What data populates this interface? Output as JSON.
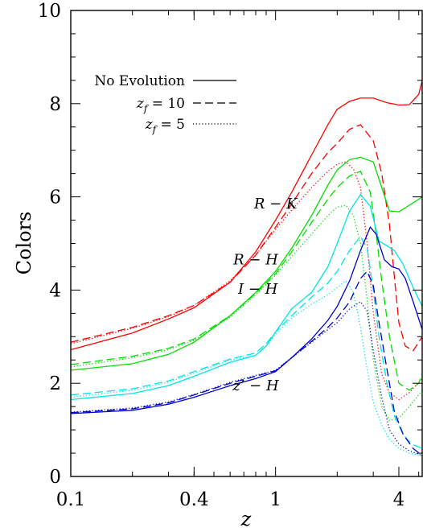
{
  "chart_data": {
    "type": "line",
    "xlabel": "z",
    "ylabel": "Colors",
    "xscale": "log",
    "xlim": [
      0.1,
      5.2
    ],
    "ylim": [
      0,
      10
    ],
    "x_ticks": [
      {
        "value": 0.1,
        "label": "0.1"
      },
      {
        "value": 0.4,
        "label": "0.4"
      },
      {
        "value": 1,
        "label": "1"
      },
      {
        "value": 4,
        "label": "4"
      }
    ],
    "y_ticks": [
      {
        "value": 0,
        "label": "0"
      },
      {
        "value": 2,
        "label": "2"
      },
      {
        "value": 4,
        "label": "4"
      },
      {
        "value": 6,
        "label": "6"
      },
      {
        "value": 8,
        "label": "8"
      },
      {
        "value": 10,
        "label": "10"
      }
    ],
    "legend": {
      "placement": "top-left",
      "entries": [
        {
          "label": "No Evolution",
          "style": "solid"
        },
        {
          "sym": "z",
          "sub": "f",
          "eq": "= 10",
          "style": "dashed"
        },
        {
          "sym": "z",
          "sub": "f",
          "eq": "=  5",
          "style": "dotted"
        }
      ]
    },
    "annotations": [
      {
        "text": "R  − K",
        "x": 1.0,
        "y": 5.75
      },
      {
        "text": "R  − H",
        "x": 0.8,
        "y": 4.55
      },
      {
        "text": "I  − H",
        "x": 0.82,
        "y": 3.92
      },
      {
        "text": "z’ − H",
        "x": 0.8,
        "y": 1.85
      }
    ],
    "series": [
      {
        "color": "#ff0000",
        "style": "solid",
        "x": [
          0.1,
          0.2,
          0.3,
          0.4,
          0.6,
          0.8,
          1.0,
          1.2,
          1.5,
          1.8,
          2.0,
          2.3,
          2.6,
          3.0,
          3.5,
          4.0,
          4.5,
          5.0,
          5.2
        ],
        "y": [
          2.72,
          3.08,
          3.38,
          3.62,
          4.17,
          4.82,
          5.5,
          6.1,
          6.9,
          7.55,
          7.88,
          8.05,
          8.12,
          8.12,
          8.02,
          7.97,
          7.98,
          8.2,
          8.5
        ]
      },
      {
        "color": "#ff0000",
        "style": "dashed",
        "x": [
          0.1,
          0.2,
          0.3,
          0.4,
          0.6,
          0.8,
          1.0,
          1.2,
          1.5,
          1.8,
          2.0,
          2.3,
          2.6,
          3.0,
          3.3,
          3.6,
          3.8,
          4.0,
          4.3,
          4.7,
          5.2
        ],
        "y": [
          2.88,
          3.2,
          3.45,
          3.67,
          4.17,
          4.75,
          5.35,
          5.85,
          6.5,
          6.95,
          7.15,
          7.45,
          7.55,
          7.2,
          6.5,
          5.4,
          4.3,
          3.3,
          2.8,
          2.7,
          3.0
        ]
      },
      {
        "color": "#ff0000",
        "style": "dotted",
        "x": [
          0.1,
          0.2,
          0.3,
          0.4,
          0.6,
          0.8,
          1.0,
          1.2,
          1.5,
          1.8,
          2.0,
          2.2,
          2.4,
          2.6,
          2.8,
          3.0,
          3.3,
          3.6,
          4.0,
          4.5,
          5.2
        ],
        "y": [
          2.85,
          3.18,
          3.43,
          3.67,
          4.2,
          4.75,
          5.3,
          5.72,
          6.2,
          6.55,
          6.7,
          6.75,
          6.6,
          6.2,
          5.0,
          3.5,
          2.2,
          1.8,
          1.65,
          1.8,
          2.1
        ]
      },
      {
        "color": "#00dd00",
        "style": "solid",
        "x": [
          0.1,
          0.2,
          0.3,
          0.4,
          0.6,
          0.8,
          1.0,
          1.2,
          1.5,
          1.8,
          2.0,
          2.3,
          2.6,
          3.0,
          3.3,
          3.6,
          4.0,
          4.5,
          5.0,
          5.2
        ],
        "y": [
          2.28,
          2.42,
          2.62,
          2.88,
          3.45,
          3.95,
          4.4,
          4.9,
          5.6,
          6.25,
          6.58,
          6.8,
          6.85,
          6.75,
          6.2,
          5.7,
          5.68,
          5.82,
          5.95,
          6.0
        ]
      },
      {
        "color": "#00dd00",
        "style": "dashed",
        "x": [
          0.1,
          0.2,
          0.3,
          0.4,
          0.6,
          0.8,
          1.0,
          1.2,
          1.5,
          1.8,
          2.0,
          2.3,
          2.6,
          2.9,
          3.1,
          3.3,
          3.6,
          4.0,
          4.5,
          5.0,
          5.2
        ],
        "y": [
          2.4,
          2.58,
          2.75,
          2.95,
          3.45,
          3.93,
          4.35,
          4.82,
          5.45,
          5.95,
          6.2,
          6.45,
          6.55,
          6.1,
          5.2,
          4.2,
          3.0,
          2.0,
          1.85,
          2.0,
          2.2
        ]
      },
      {
        "color": "#00dd00",
        "style": "dotted",
        "x": [
          0.1,
          0.2,
          0.3,
          0.4,
          0.6,
          0.8,
          1.0,
          1.2,
          1.5,
          1.8,
          2.0,
          2.2,
          2.4,
          2.6,
          2.8,
          3.0,
          3.3,
          3.6,
          4.0,
          4.5,
          5.2
        ],
        "y": [
          2.35,
          2.55,
          2.72,
          2.92,
          3.42,
          3.9,
          4.32,
          4.72,
          5.2,
          5.6,
          5.78,
          5.82,
          5.6,
          5.0,
          3.8,
          2.5,
          1.5,
          1.2,
          1.25,
          1.5,
          1.85
        ]
      },
      {
        "color": "#00e5e5",
        "style": "solid",
        "x": [
          0.1,
          0.2,
          0.3,
          0.4,
          0.6,
          0.8,
          0.9,
          1.0,
          1.2,
          1.5,
          1.8,
          2.0,
          2.3,
          2.6,
          2.9,
          3.2,
          3.5,
          3.8,
          4.2,
          4.7,
          5.2
        ],
        "y": [
          1.65,
          1.78,
          1.95,
          2.15,
          2.45,
          2.6,
          2.8,
          3.1,
          3.6,
          3.95,
          4.5,
          5.0,
          5.7,
          6.05,
          5.8,
          5.05,
          4.95,
          4.85,
          4.55,
          4.05,
          3.65
        ]
      },
      {
        "color": "#00e5e5",
        "style": "dashed",
        "x": [
          0.1,
          0.2,
          0.3,
          0.4,
          0.6,
          0.8,
          0.9,
          1.0,
          1.2,
          1.5,
          1.8,
          2.0,
          2.3,
          2.6,
          2.8,
          3.0,
          3.2,
          3.5,
          3.8,
          4.2,
          4.6,
          5.2
        ],
        "y": [
          1.75,
          1.88,
          2.05,
          2.25,
          2.52,
          2.65,
          2.85,
          3.1,
          3.45,
          3.85,
          4.15,
          4.4,
          4.85,
          5.15,
          4.9,
          4.0,
          3.0,
          2.0,
          1.3,
          0.9,
          0.7,
          0.6
        ]
      },
      {
        "color": "#00e5e5",
        "style": "dotted",
        "x": [
          0.1,
          0.2,
          0.3,
          0.4,
          0.6,
          0.8,
          0.9,
          1.0,
          1.2,
          1.5,
          1.8,
          2.0,
          2.2,
          2.4,
          2.6,
          2.8,
          3.0,
          3.3,
          3.6,
          4.0,
          4.5,
          5.2
        ],
        "y": [
          1.7,
          1.85,
          2.02,
          2.22,
          2.5,
          2.6,
          2.8,
          3.05,
          3.4,
          3.7,
          3.9,
          4.05,
          4.2,
          3.95,
          3.2,
          2.3,
          1.6,
          1.1,
          0.8,
          0.6,
          0.5,
          0.45
        ]
      },
      {
        "color": "#0000cc",
        "style": "solid",
        "x": [
          0.1,
          0.2,
          0.3,
          0.4,
          0.6,
          0.8,
          1.0,
          1.2,
          1.5,
          1.8,
          2.0,
          2.3,
          2.6,
          2.9,
          3.1,
          3.4,
          3.7,
          4.0,
          4.3,
          4.7,
          5.2
        ],
        "y": [
          1.35,
          1.42,
          1.55,
          1.7,
          1.95,
          2.1,
          2.25,
          2.55,
          2.95,
          3.35,
          3.65,
          4.2,
          4.85,
          5.35,
          5.2,
          4.65,
          4.5,
          4.45,
          4.25,
          3.75,
          3.15
        ]
      },
      {
        "color": "#0000cc",
        "style": "dashed",
        "x": [
          0.1,
          0.2,
          0.3,
          0.4,
          0.6,
          0.8,
          1.0,
          1.2,
          1.5,
          1.8,
          2.0,
          2.3,
          2.6,
          2.8,
          3.0,
          3.2,
          3.5,
          3.8,
          4.2,
          4.7,
          5.2
        ],
        "y": [
          1.37,
          1.45,
          1.58,
          1.75,
          2.0,
          2.15,
          2.27,
          2.55,
          2.9,
          3.2,
          3.4,
          3.75,
          4.25,
          4.4,
          4.1,
          3.3,
          2.3,
          1.4,
          0.9,
          0.6,
          0.45
        ]
      },
      {
        "color": "#0000cc",
        "style": "dotted",
        "x": [
          0.1,
          0.2,
          0.3,
          0.4,
          0.6,
          0.8,
          1.0,
          1.2,
          1.5,
          1.8,
          2.0,
          2.3,
          2.6,
          2.8,
          3.0,
          3.3,
          3.6,
          4.0,
          4.5,
          5.2
        ],
        "y": [
          1.38,
          1.47,
          1.6,
          1.76,
          2.02,
          2.17,
          2.28,
          2.55,
          2.88,
          3.15,
          3.3,
          3.6,
          3.75,
          3.55,
          2.7,
          1.7,
          1.0,
          0.7,
          0.55,
          0.45
        ]
      }
    ]
  }
}
